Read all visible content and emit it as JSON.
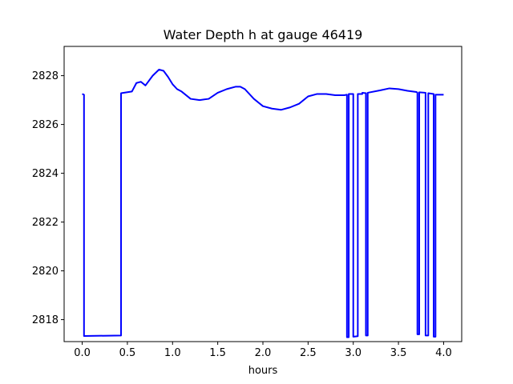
{
  "chart_data": {
    "type": "line",
    "title": "Water Depth h at gauge 46419",
    "xlabel": "hours",
    "ylabel": "",
    "xlim": [
      -0.2,
      4.2
    ],
    "ylim": [
      2817.1,
      2829.2
    ],
    "xticks": [
      0.0,
      0.5,
      1.0,
      1.5,
      2.0,
      2.5,
      3.0,
      3.5,
      4.0
    ],
    "xtick_labels": [
      "0.0",
      "0.5",
      "1.0",
      "1.5",
      "2.0",
      "2.5",
      "3.0",
      "3.5",
      "4.0"
    ],
    "yticks": [
      2818,
      2820,
      2822,
      2824,
      2826,
      2828
    ],
    "ytick_labels": [
      "2818",
      "2820",
      "2822",
      "2824",
      "2826",
      "2828"
    ],
    "grid": false,
    "series": [
      {
        "color": "#0000ff",
        "x": [
          0.0,
          0.02,
          0.02,
          0.43,
          0.43,
          0.55,
          0.6,
          0.65,
          0.7,
          0.78,
          0.85,
          0.9,
          0.95,
          1.0,
          1.05,
          1.1,
          1.2,
          1.3,
          1.4,
          1.5,
          1.6,
          1.7,
          1.75,
          1.8,
          1.9,
          2.0,
          2.1,
          2.2,
          2.3,
          2.4,
          2.5,
          2.6,
          2.7,
          2.8,
          2.9,
          2.93,
          2.93,
          2.95,
          2.95,
          3.0,
          3.0,
          3.05,
          3.05,
          3.1,
          3.1,
          3.14,
          3.14,
          3.16,
          3.16,
          3.3,
          3.4,
          3.5,
          3.6,
          3.7,
          3.71,
          3.71,
          3.73,
          3.73,
          3.8,
          3.8,
          3.83,
          3.83,
          3.89,
          3.89,
          3.91,
          3.91,
          4.0
        ],
        "y": [
          2827.25,
          2827.22,
          2817.33,
          2817.35,
          2827.28,
          2827.35,
          2827.7,
          2827.75,
          2827.6,
          2828.0,
          2828.25,
          2828.2,
          2827.95,
          2827.65,
          2827.45,
          2827.35,
          2827.05,
          2827.0,
          2827.05,
          2827.3,
          2827.45,
          2827.55,
          2827.55,
          2827.45,
          2827.05,
          2826.75,
          2826.65,
          2826.6,
          2826.7,
          2826.85,
          2827.15,
          2827.25,
          2827.25,
          2827.2,
          2827.2,
          2827.22,
          2817.28,
          2817.28,
          2827.25,
          2827.25,
          2817.3,
          2817.32,
          2827.25,
          2827.25,
          2827.3,
          2827.28,
          2817.35,
          2817.35,
          2827.3,
          2827.4,
          2827.48,
          2827.45,
          2827.38,
          2827.33,
          2827.3,
          2817.4,
          2817.4,
          2827.32,
          2827.3,
          2817.35,
          2817.35,
          2827.28,
          2827.25,
          2817.3,
          2817.3,
          2827.22,
          2827.22
        ]
      }
    ]
  }
}
